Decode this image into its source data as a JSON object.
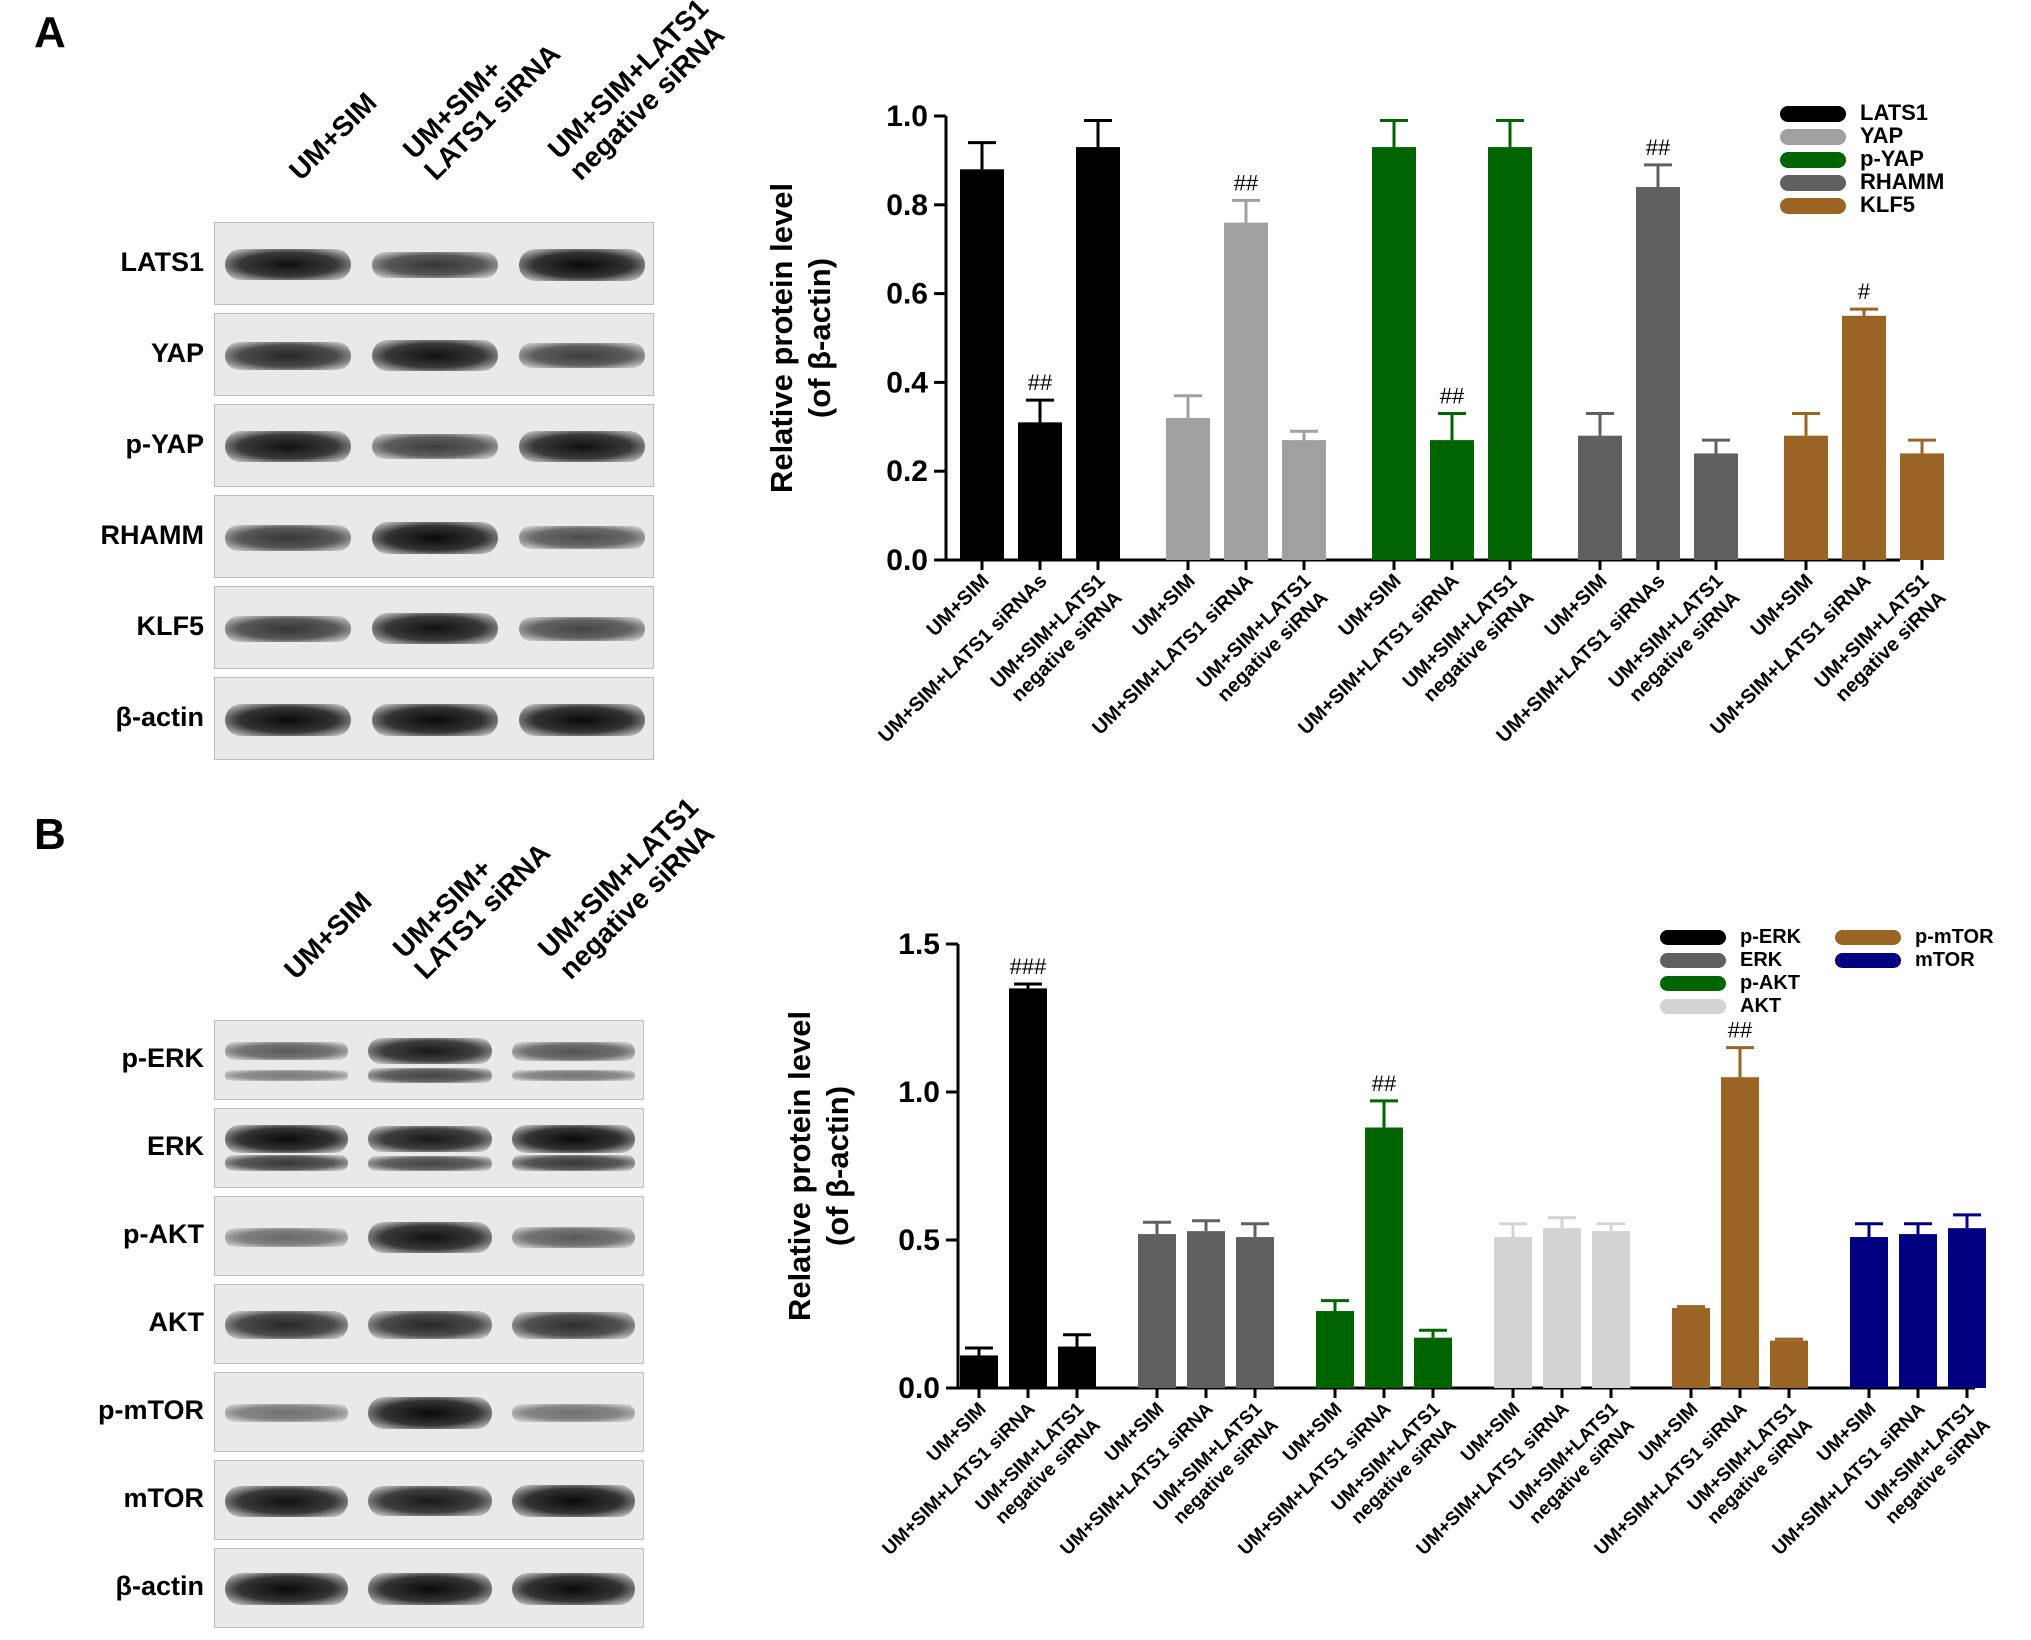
{
  "panels": {
    "a": "A",
    "b": "B"
  },
  "blot_a": {
    "lane_headers": [
      [
        "UM+SIM"
      ],
      [
        "UM+SIM+",
        "LATS1 siRNA"
      ],
      [
        "UM+SIM+LATS1",
        "negative siRNA"
      ]
    ],
    "rows": [
      {
        "label": "LATS1",
        "bands": [
          0.95,
          0.7,
          1.0
        ],
        "double": false
      },
      {
        "label": "YAP",
        "bands": [
          0.8,
          0.95,
          0.65
        ],
        "double": false
      },
      {
        "label": "p-YAP",
        "bands": [
          0.95,
          0.65,
          0.95
        ],
        "double": false
      },
      {
        "label": "RHAMM",
        "bands": [
          0.7,
          1.0,
          0.55
        ],
        "double": false
      },
      {
        "label": "KLF5",
        "bands": [
          0.7,
          0.95,
          0.6
        ],
        "double": false
      },
      {
        "label": "β-actin",
        "bands": [
          1.0,
          1.0,
          1.0
        ],
        "double": false
      }
    ]
  },
  "blot_b": {
    "lane_headers": [
      [
        "UM+SIM"
      ],
      [
        "UM+SIM+",
        "LATS1 siRNA"
      ],
      [
        "UM+SIM+LATS1",
        "negative siRNA"
      ]
    ],
    "rows": [
      {
        "label": "p-ERK",
        "bands": [
          0.45,
          0.9,
          0.5
        ],
        "double": true
      },
      {
        "label": "ERK",
        "bands": [
          1.0,
          0.9,
          1.0
        ],
        "double": true
      },
      {
        "label": "p-AKT",
        "bands": [
          0.35,
          0.95,
          0.45
        ],
        "double": false
      },
      {
        "label": "AKT",
        "bands": [
          0.8,
          0.8,
          0.75
        ],
        "double": false
      },
      {
        "label": "p-mTOR",
        "bands": [
          0.3,
          1.0,
          0.3
        ],
        "double": false
      },
      {
        "label": "mTOR",
        "bands": [
          0.95,
          0.9,
          1.0
        ],
        "double": false
      },
      {
        "label": "β-actin",
        "bands": [
          1.0,
          1.0,
          1.0
        ],
        "double": false
      }
    ]
  },
  "chart_data": [
    {
      "type": "bar",
      "ylabel": [
        "Relative protein level",
        "(of  β-actin)"
      ],
      "ylim": [
        0,
        1.0
      ],
      "yticks": [
        0.0,
        0.2,
        0.4,
        0.6,
        0.8,
        1.0
      ],
      "tick_format": 1,
      "legend_position": "top-right",
      "groups": [
        {
          "name": "LATS1",
          "color": "#000000",
          "categories": [
            "UM+SIM",
            "UM+SIM+LATS1 siRNAs",
            "UM+SIM+LATS1\nnegative siRNA"
          ],
          "values": [
            0.88,
            0.31,
            0.93
          ],
          "errors": [
            0.06,
            0.05,
            0.06
          ],
          "marks": [
            "",
            "##",
            ""
          ]
        },
        {
          "name": "YAP",
          "color": "#a0a0a0",
          "categories": [
            "UM+SIM",
            "UM+SIM+LATS1 siRNA",
            "UM+SIM+LATS1\nnegative siRNA"
          ],
          "values": [
            0.32,
            0.76,
            0.27
          ],
          "errors": [
            0.05,
            0.05,
            0.02
          ],
          "marks": [
            "",
            "##",
            ""
          ]
        },
        {
          "name": "p-YAP",
          "color": "#006400",
          "categories": [
            "UM+SIM",
            "UM+SIM+LATS1 siRNA",
            "UM+SIM+LATS1\nnegative siRNA"
          ],
          "values": [
            0.93,
            0.27,
            0.93
          ],
          "errors": [
            0.06,
            0.06,
            0.06
          ],
          "marks": [
            "",
            "##",
            ""
          ]
        },
        {
          "name": "RHAMM",
          "color": "#606060",
          "categories": [
            "UM+SIM",
            "UM+SIM+LATS1 siRNAs",
            "UM+SIM+LATS1\nnegative siRNA"
          ],
          "values": [
            0.28,
            0.84,
            0.24
          ],
          "errors": [
            0.05,
            0.05,
            0.03
          ],
          "marks": [
            "",
            "##",
            ""
          ]
        },
        {
          "name": "KLF5",
          "color": "#9a6424",
          "categories": [
            "UM+SIM",
            "UM+SIM+LATS1 siRNA",
            "UM+SIM+LATS1\nnegative siRNA"
          ],
          "values": [
            0.28,
            0.55,
            0.24
          ],
          "errors": [
            0.05,
            0.015,
            0.03
          ],
          "marks": [
            "",
            "#",
            ""
          ]
        }
      ]
    },
    {
      "type": "bar",
      "ylabel": [
        "Relative protein level",
        "(of  β-actin)"
      ],
      "ylim": [
        0,
        1.5
      ],
      "yticks": [
        0.0,
        0.5,
        1.0,
        1.5
      ],
      "tick_format": 1,
      "legend_position": "top-right",
      "groups": [
        {
          "name": "p-ERK",
          "color": "#000000",
          "categories": [
            "UM+SIM",
            "UM+SIM+LATS1 siRNA",
            "UM+SIM+LATS1\nnegative siRNA"
          ],
          "values": [
            0.11,
            1.35,
            0.14
          ],
          "errors": [
            0.025,
            0.015,
            0.04
          ],
          "marks": [
            "",
            "###",
            ""
          ]
        },
        {
          "name": "ERK",
          "color": "#606060",
          "categories": [
            "UM+SIM",
            "UM+SIM+LATS1 siRNA",
            "UM+SIM+LATS1\nnegative siRNA"
          ],
          "values": [
            0.52,
            0.53,
            0.51
          ],
          "errors": [
            0.04,
            0.035,
            0.045
          ],
          "marks": [
            "",
            "",
            ""
          ]
        },
        {
          "name": "p-AKT",
          "color": "#006400",
          "categories": [
            "UM+SIM",
            "UM+SIM+LATS1 siRNA",
            "UM+SIM+LATS1\nnegative siRNA"
          ],
          "values": [
            0.26,
            0.88,
            0.17
          ],
          "errors": [
            0.035,
            0.09,
            0.025
          ],
          "marks": [
            "",
            "##",
            ""
          ]
        },
        {
          "name": "AKT",
          "color": "#d3d3d3",
          "categories": [
            "UM+SIM",
            "UM+SIM+LATS1 siRNA",
            "UM+SIM+LATS1\nnegative siRNA"
          ],
          "values": [
            0.51,
            0.54,
            0.53
          ],
          "errors": [
            0.045,
            0.035,
            0.025
          ],
          "marks": [
            "",
            "",
            ""
          ]
        },
        {
          "name": "p-mTOR",
          "color": "#9a6424",
          "categories": [
            "UM+SIM",
            "UM+SIM+LATS1 siRNA",
            "UM+SIM+LATS1\nnegative siRNA"
          ],
          "values": [
            0.27,
            1.05,
            0.16
          ],
          "errors": [
            0.005,
            0.1,
            0.005
          ],
          "marks": [
            "",
            "##",
            ""
          ]
        },
        {
          "name": "mTOR",
          "color": "#000080",
          "categories": [
            "UM+SIM",
            "UM+SIM+LATS1 siRNA",
            "UM+SIM+LATS1\nnegative siRNA"
          ],
          "values": [
            0.51,
            0.52,
            0.54
          ],
          "errors": [
            0.045,
            0.035,
            0.045
          ],
          "marks": [
            "",
            "",
            ""
          ]
        }
      ]
    }
  ]
}
